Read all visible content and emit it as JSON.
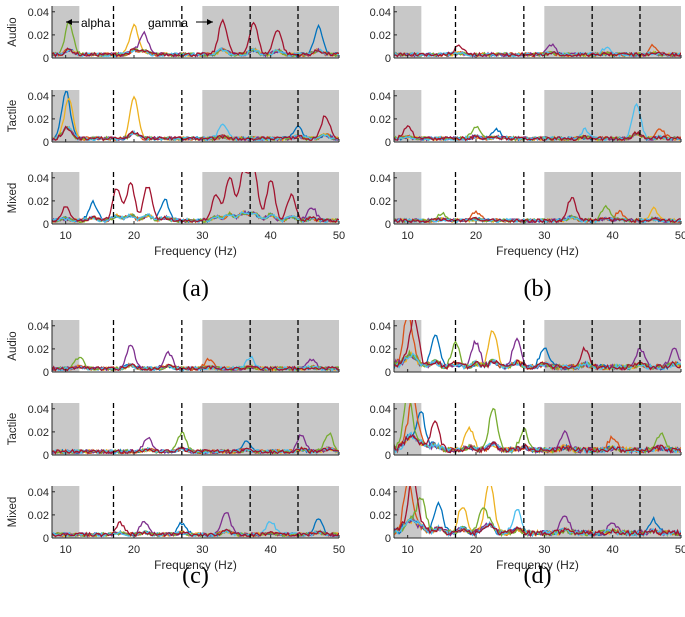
{
  "chart_data": {
    "type": "line",
    "xlabel": "Frequency (Hz)",
    "x_range": [
      8,
      50
    ],
    "y_range": [
      0,
      0.045
    ],
    "x_ticks": [
      "10",
      "20",
      "30",
      "40",
      "50"
    ],
    "y_ticks": [
      "0",
      "0.02",
      "0.04"
    ],
    "rows": [
      "Audio",
      "Tactile",
      "Mixed"
    ],
    "panels": [
      "(a)",
      "(b)",
      "(c)",
      "(d)"
    ],
    "shaded_bands_hz": [
      [
        8,
        12
      ],
      [
        30,
        50
      ]
    ],
    "dashed_lines_hz": [
      17,
      27,
      37,
      44
    ],
    "annotations": {
      "alpha": "alpha",
      "gamma": "gamma"
    },
    "series_colors": [
      "#0072BD",
      "#D95319",
      "#EDB120",
      "#7E2F8E",
      "#77AC30",
      "#4DBEEE",
      "#A2142F"
    ],
    "peaks": {
      "a": {
        "Audio": [
          [
            10.5,
            0.028,
            4
          ],
          [
            20,
            0.026,
            2
          ],
          [
            21.5,
            0.018,
            3
          ],
          [
            33,
            0.03,
            6
          ],
          [
            37.5,
            0.028,
            6
          ],
          [
            41,
            0.022,
            6
          ],
          [
            47,
            0.024,
            0
          ]
        ],
        "Tactile": [
          [
            10,
            0.038,
            0
          ],
          [
            10.5,
            0.03,
            2
          ],
          [
            20,
            0.036,
            2
          ],
          [
            33,
            0.012,
            5
          ],
          [
            44,
            0.012,
            0
          ],
          [
            48,
            0.02,
            6
          ]
        ],
        "Mixed": [
          [
            10,
            0.012,
            6
          ],
          [
            14,
            0.016,
            0
          ],
          [
            17.5,
            0.028,
            6
          ],
          [
            19.5,
            0.032,
            6
          ],
          [
            22,
            0.03,
            6
          ],
          [
            24.5,
            0.018,
            0
          ],
          [
            32,
            0.022,
            6
          ],
          [
            34,
            0.038,
            6
          ],
          [
            36,
            0.042,
            6
          ],
          [
            37.5,
            0.045,
            6
          ],
          [
            40,
            0.035,
            6
          ],
          [
            43,
            0.022,
            6
          ],
          [
            46,
            0.012,
            3
          ]
        ]
      },
      "b": {
        "Audio": [
          [
            17.5,
            0.008,
            6
          ],
          [
            31,
            0.009,
            3
          ],
          [
            39,
            0.006,
            5
          ],
          [
            46,
            0.008,
            1
          ]
        ],
        "Tactile": [
          [
            10,
            0.01,
            6
          ],
          [
            20,
            0.01,
            4
          ],
          [
            23,
            0.008,
            0
          ],
          [
            36,
            0.008,
            5
          ],
          [
            43.5,
            0.03,
            5
          ],
          [
            47,
            0.008,
            1
          ]
        ],
        "Mixed": [
          [
            15,
            0.006,
            4
          ],
          [
            20,
            0.008,
            1
          ],
          [
            34,
            0.02,
            6
          ],
          [
            39,
            0.012,
            4
          ],
          [
            41,
            0.008,
            1
          ],
          [
            46,
            0.01,
            2
          ]
        ]
      },
      "c": {
        "Audio": [
          [
            12,
            0.01,
            4
          ],
          [
            19.5,
            0.02,
            3
          ],
          [
            25,
            0.014,
            3
          ],
          [
            31,
            0.008,
            1
          ],
          [
            37,
            0.01,
            5
          ],
          [
            46,
            0.008,
            3
          ]
        ],
        "Tactile": [
          [
            22,
            0.012,
            3
          ],
          [
            27,
            0.016,
            4
          ],
          [
            36.5,
            0.01,
            0
          ],
          [
            44.5,
            0.014,
            3
          ],
          [
            48.5,
            0.016,
            4
          ]
        ],
        "Mixed": [
          [
            18,
            0.01,
            6
          ],
          [
            21.5,
            0.012,
            3
          ],
          [
            27,
            0.01,
            0
          ],
          [
            33.5,
            0.02,
            3
          ],
          [
            40,
            0.012,
            5
          ],
          [
            47,
            0.014,
            0
          ]
        ]
      },
      "d": {
        "Audio": [
          [
            10,
            0.043,
            1
          ],
          [
            11,
            0.04,
            6
          ],
          [
            14,
            0.028,
            0
          ],
          [
            17,
            0.02,
            4
          ],
          [
            20,
            0.022,
            3
          ],
          [
            22.5,
            0.032,
            2
          ],
          [
            26,
            0.026,
            3
          ],
          [
            30,
            0.018,
            0
          ],
          [
            36,
            0.016,
            6
          ],
          [
            44,
            0.016,
            3
          ],
          [
            49,
            0.018,
            3
          ]
        ],
        "Tactile": [
          [
            10,
            0.045,
            4
          ],
          [
            10.8,
            0.044,
            1
          ],
          [
            12,
            0.03,
            0
          ],
          [
            14,
            0.026,
            6
          ],
          [
            19,
            0.02,
            2
          ],
          [
            22.5,
            0.036,
            4
          ],
          [
            27,
            0.018,
            4
          ],
          [
            33,
            0.016,
            3
          ],
          [
            40,
            0.012,
            1
          ],
          [
            47,
            0.014,
            4
          ]
        ],
        "Mixed": [
          [
            10,
            0.04,
            1
          ],
          [
            10.8,
            0.045,
            6
          ],
          [
            12,
            0.03,
            4
          ],
          [
            14.5,
            0.025,
            0
          ],
          [
            18,
            0.024,
            2
          ],
          [
            21,
            0.02,
            4
          ],
          [
            22,
            0.045,
            2
          ],
          [
            26,
            0.02,
            5
          ],
          [
            33,
            0.016,
            3
          ],
          [
            40,
            0.01,
            3
          ],
          [
            46,
            0.012,
            0
          ]
        ]
      }
    }
  }
}
